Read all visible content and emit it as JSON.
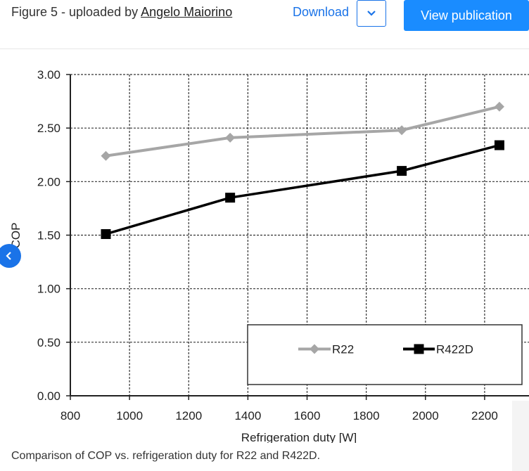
{
  "header": {
    "title_prefix": "Figure 5 - uploaded by ",
    "author": "Angelo Maiorino",
    "download_label": "Download",
    "view_label": "View publication"
  },
  "icons": {
    "dropdown": "chevron-down-icon",
    "prev": "chevron-left-icon"
  },
  "colors": {
    "accent": "#1a73e8",
    "primary_button": "#1a8cff",
    "series_r22": "#a6a6a6",
    "series_r422d": "#000000"
  },
  "caption": "Comparison of COP vs. refrigeration duty for R22 and R422D.",
  "chart_data": {
    "type": "line",
    "title": "",
    "xlabel": "Refrigeration duty [W]",
    "ylabel": "COP",
    "xlim": [
      800,
      2350
    ],
    "ylim": [
      0,
      3
    ],
    "xticks": [
      "800",
      "1000",
      "1200",
      "1400",
      "1600",
      "1800",
      "2000",
      "2200"
    ],
    "yticks": [
      "0.00",
      "0.50",
      "1.00",
      "1.50",
      "2.00",
      "2.50",
      "3.00"
    ],
    "grid": true,
    "legend": "bottom-right",
    "series": [
      {
        "name": "R22",
        "marker": "diamond",
        "x": [
          920,
          1340,
          1920,
          2250
        ],
        "y": [
          2.24,
          2.41,
          2.48,
          2.7
        ]
      },
      {
        "name": "R422D",
        "marker": "square",
        "x": [
          920,
          1340,
          1920,
          2250
        ],
        "y": [
          1.51,
          1.85,
          2.1,
          2.34
        ]
      }
    ]
  }
}
